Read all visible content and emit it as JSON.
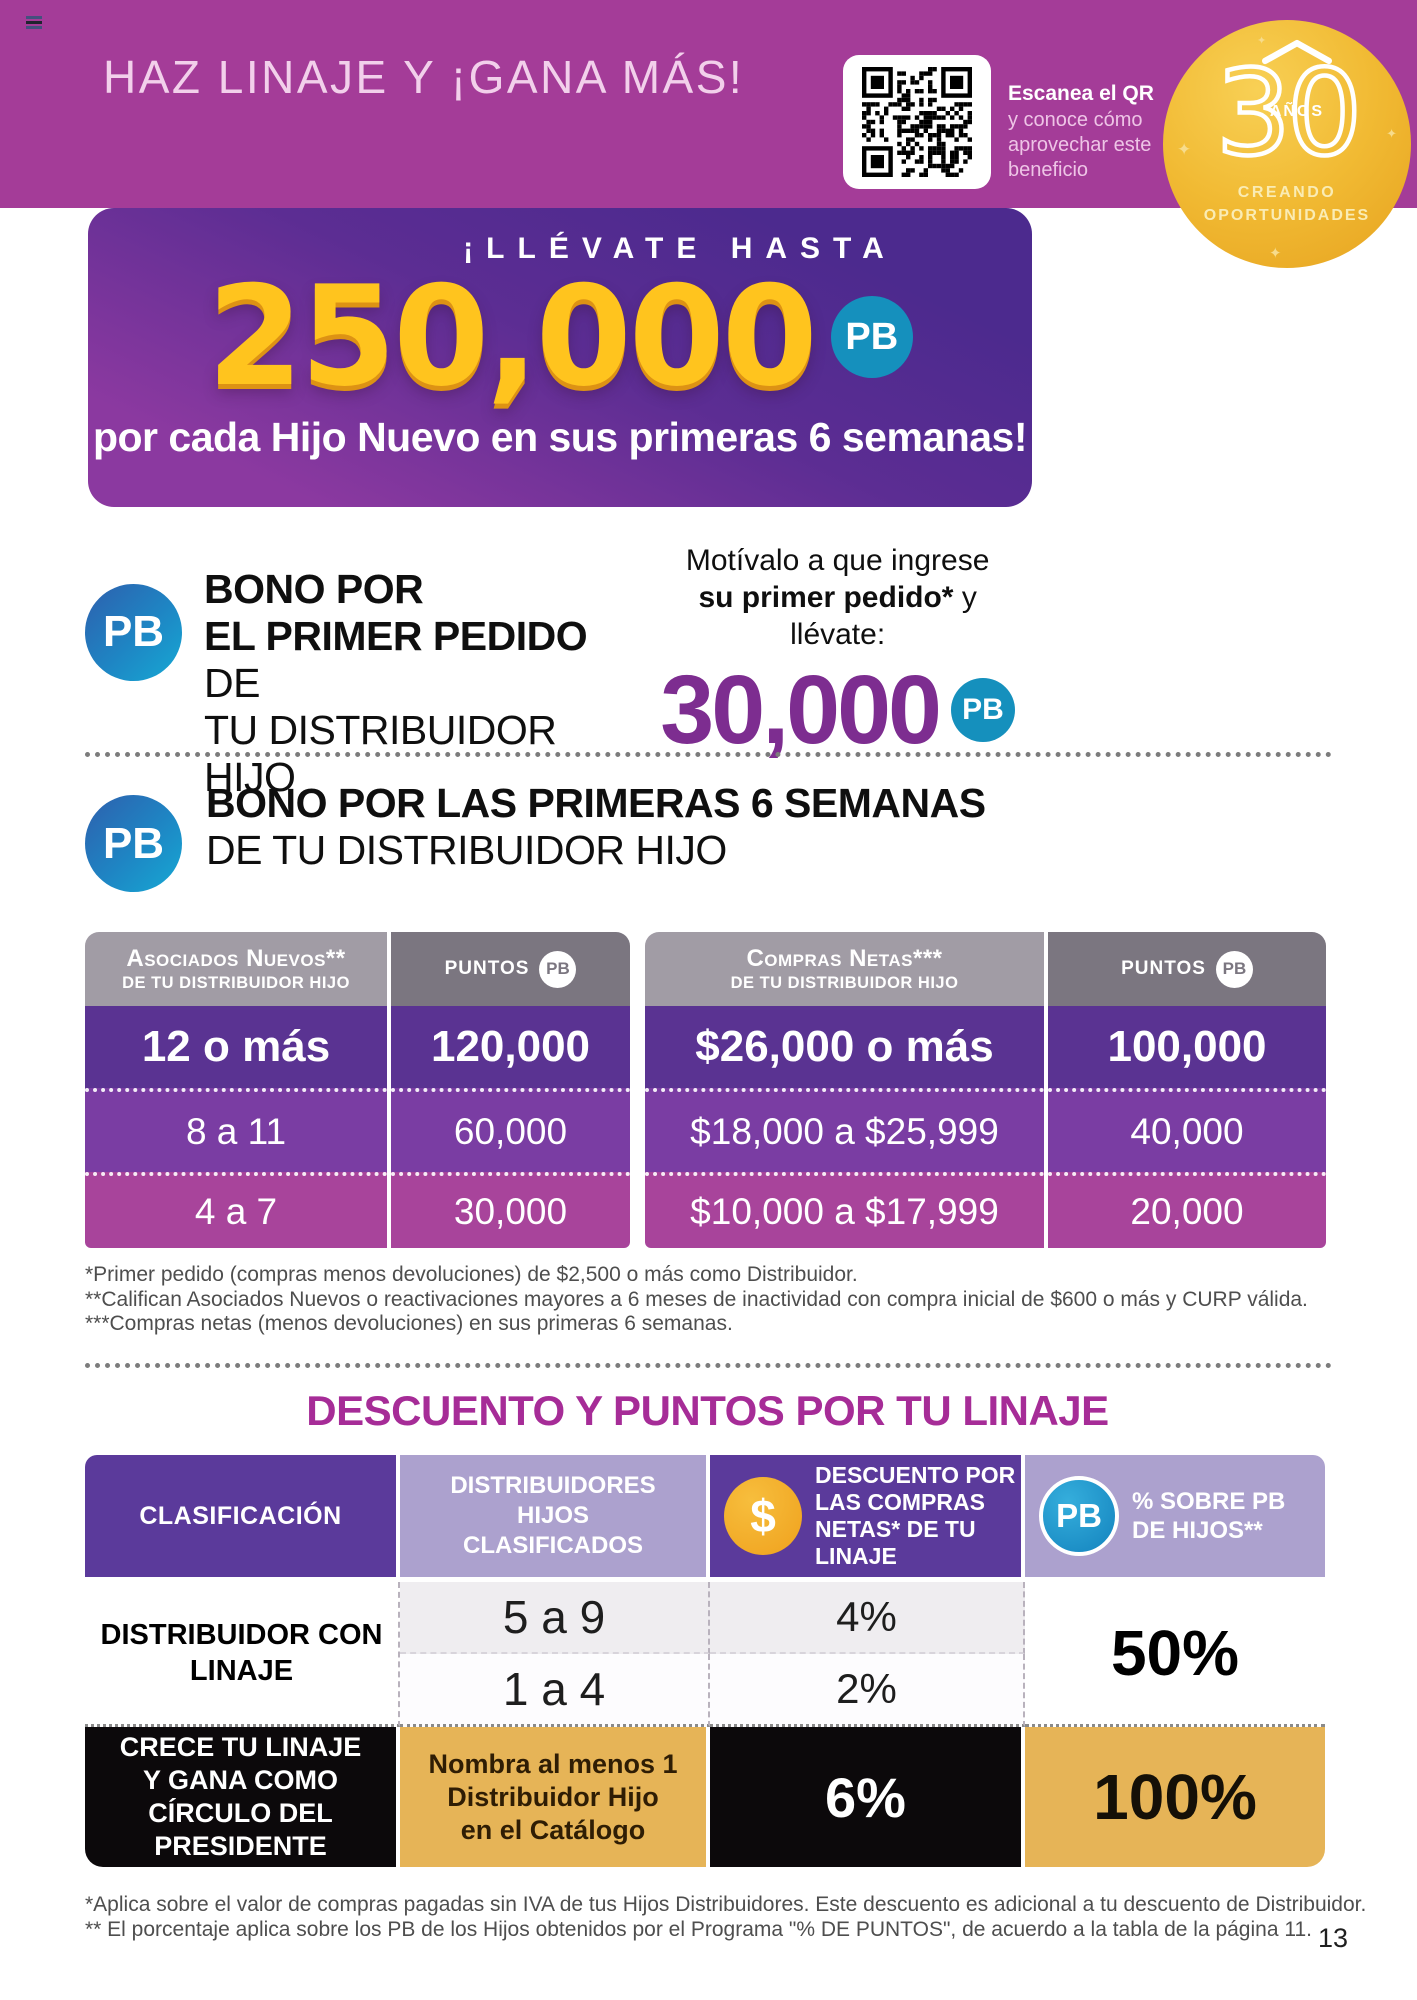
{
  "page": {
    "number": "13"
  },
  "icons": {
    "pb": "PB",
    "dollar": "$",
    "sparkle": "✦"
  },
  "colors": {
    "header-magenta": "#A43C98",
    "title-pink": "#F2D0EB",
    "balloon-yellow": "#FFC41E",
    "pb-teal": "#1590BD",
    "pb-blue-1": "#2E5FAD",
    "pb-blue-2": "#16A9D4",
    "amount-purple": "#7D2D90",
    "row-purple-dark": "#5A3392",
    "row-purple": "#7A3DA3",
    "row-pink": "#A8449B",
    "head-gray-light": "#A19CA5",
    "head-gray-dark": "#7B7680",
    "heading-magenta": "#A62C97",
    "cell-purple": "#5B3A9B",
    "cell-lavender": "#ACA1CE",
    "cell-black": "#0C090B",
    "cell-gold": "#E6B457",
    "coin-gold": "#EFA11D",
    "badge-gold-1": "#E6A21F",
    "badge-gold-2": "#F1BA33"
  },
  "header": {
    "title": "HAZ LINAJE Y ¡GANA MÁS!",
    "qr_bold": "Escanea el QR",
    "qr_rest": "y conoce cómo aprovechar este beneficio"
  },
  "badge": {
    "number": "30",
    "years": "AÑOS",
    "line1": "CREANDO",
    "line2": "OPORTUNIDADES"
  },
  "hero": {
    "kicker": "¡LLÉVATE HASTA",
    "amount": "250,000",
    "caption": "por cada Hijo Nuevo en sus primeras 6 semanas!"
  },
  "bonus1": {
    "l1": "BONO POR",
    "l2b": "EL PRIMER PEDIDO",
    "l2r": " DE",
    "l3": "TU DISTRIBUIDOR HIJO",
    "p1": "Motívalo a que ingrese",
    "p2b": "su primer pedido*",
    "p2r": " y llévate:",
    "amount": "30,000"
  },
  "bonus2": {
    "l1": "BONO POR LAS PRIMERAS 6 SEMANAS",
    "l2": "DE TU DISTRIBUIDOR HIJO"
  },
  "six_tables": [
    {
      "col1_line1": "Asociados Nuevos**",
      "col1_line2": "DE TU DISTRIBUIDOR HIJO",
      "col2": "PUNTOS",
      "rows": [
        {
          "range": "12 o más",
          "points": "120,000"
        },
        {
          "range": "8 a 11",
          "points": "60,000"
        },
        {
          "range": "4 a 7",
          "points": "30,000"
        }
      ]
    },
    {
      "col1_line1": "Compras Netas***",
      "col1_line2": "DE TU DISTRIBUIDOR HIJO",
      "col2": "PUNTOS",
      "rows": [
        {
          "range": "$26,000 o más",
          "points": "100,000"
        },
        {
          "range": "$18,000 a $25,999",
          "points": "40,000"
        },
        {
          "range": "$10,000 a $17,999",
          "points": "20,000"
        }
      ]
    }
  ],
  "footnotes1": [
    "*Primer pedido (compras menos devoluciones) de $2,500 o más como Distribuidor.",
    "**Califican Asociados Nuevos o reactivaciones mayores a 6 meses de inactividad con compra inicial de $600 o más y CURP válida.",
    "***Compras netas (menos devoluciones) en sus primeras 6 semanas."
  ],
  "lineage": {
    "heading": "DESCUENTO Y PUNTOS POR TU LINAJE",
    "col1": "CLASIFICACIÓN",
    "col2": "DISTRIBUIDORES HIJOS CLASIFICADOS",
    "col3": "DESCUENTO POR LAS COMPRAS NETAS* DE TU LINAJE",
    "col4": "% SOBRE PB DE HIJOS**",
    "row1_label": "DISTRIBUIDOR CON LINAJE",
    "row1_sub": [
      {
        "hijos": "5 a 9",
        "descuento": "4%"
      },
      {
        "hijos": "1 a 4",
        "descuento": "2%"
      }
    ],
    "row1_pb": "50%",
    "row2_label": "CRECE TU LINAJE Y GANA COMO CÍRCULO DEL PRESIDENTE",
    "row2_hijos": "Nombra al menos 1 Distribuidor Hijo en el Catálogo",
    "row2_descuento": "6%",
    "row2_pb": "100%"
  },
  "footnotes2": [
    "*Aplica sobre el valor de compras pagadas sin IVA de tus Hijos Distribuidores. Este descuento es adicional a tu descuento de Distribuidor.",
    "** El porcentaje aplica sobre los PB de los Hijos obtenidos por el Programa \"% DE PUNTOS\", de acuerdo a la tabla de la página 11."
  ]
}
